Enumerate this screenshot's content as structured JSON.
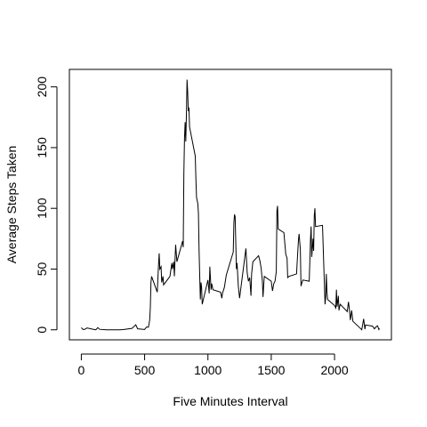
{
  "chart_data": {
    "type": "line",
    "xlabel": "Five Minutes Interval",
    "ylabel": "Average Steps Taken",
    "x": [
      0,
      15,
      30,
      45,
      100,
      115,
      130,
      145,
      200,
      230,
      300,
      330,
      400,
      415,
      430,
      445,
      500,
      515,
      530,
      540,
      545,
      550,
      555,
      600,
      610,
      615,
      620,
      630,
      635,
      645,
      650,
      700,
      715,
      720,
      730,
      735,
      745,
      755,
      800,
      805,
      810,
      815,
      820,
      825,
      830,
      835,
      840,
      845,
      850,
      855,
      900,
      905,
      910,
      920,
      925,
      930,
      935,
      940,
      945,
      950,
      955,
      1000,
      1010,
      1015,
      1025,
      1030,
      1040,
      1100,
      1110,
      1115,
      1130,
      1145,
      1200,
      1205,
      1210,
      1215,
      1225,
      1230,
      1240,
      1250,
      1300,
      1310,
      1320,
      1330,
      1340,
      1345,
      1355,
      1400,
      1410,
      1420,
      1430,
      1435,
      1445,
      1500,
      1510,
      1520,
      1530,
      1540,
      1545,
      1550,
      1555,
      1600,
      1615,
      1625,
      1630,
      1640,
      1700,
      1705,
      1715,
      1720,
      1730,
      1735,
      1740,
      1750,
      1800,
      1810,
      1815,
      1820,
      1830,
      1835,
      1840,
      1845,
      1850,
      1905,
      1915,
      1925,
      1930,
      1935,
      1940,
      1945,
      2000,
      2010,
      2015,
      2020,
      2030,
      2035,
      2040,
      2045,
      2100,
      2110,
      2115,
      2125,
      2135,
      2145,
      2200,
      2215,
      2230,
      2240,
      2245,
      2300,
      2315,
      2330,
      2340,
      2350,
      2355
    ],
    "series": [
      {
        "color": "#000000",
        "values": [
          1.7,
          0.2,
          0.5,
          1.5,
          0.3,
          0,
          1.8,
          0.4,
          0,
          0,
          0,
          0.2,
          1.2,
          2.6,
          4.1,
          0.8,
          0.3,
          2.3,
          2.1,
          8,
          18,
          39,
          44,
          31,
          54,
          63,
          50,
          52,
          39,
          44,
          37,
          44,
          55,
          50,
          56,
          44,
          70,
          56,
          73,
          68,
          129,
          158,
          171,
          155,
          177,
          206,
          196,
          180,
          183,
          167,
          143,
          124,
          109,
          104,
          96,
          66,
          45,
          25,
          39,
          35,
          21,
          41,
          30,
          52,
          33,
          38,
          33,
          31,
          26,
          30,
          35,
          45,
          64,
          88,
          95,
          93,
          50,
          55,
          36,
          26,
          67,
          47,
          40,
          43,
          28,
          46,
          56,
          61,
          57,
          51,
          40,
          27,
          44,
          40,
          32,
          38,
          40,
          48,
          98,
          102,
          83,
          80,
          62,
          59,
          43,
          44,
          46,
          56,
          74,
          79,
          66,
          36,
          38,
          41,
          40,
          74,
          85,
          60,
          75,
          65,
          94,
          100,
          85,
          86,
          53,
          21,
          27,
          46,
          31,
          25,
          20,
          18,
          33,
          19,
          28,
          16,
          19,
          21,
          15,
          23,
          19,
          8,
          16,
          7,
          1.6,
          0,
          9,
          0.5,
          4,
          3,
          0.8,
          2.6,
          3.3,
          0.2,
          1.1
        ]
      }
    ],
    "xlim": [
      -94.2,
      2449.2
    ],
    "xticks": [
      0,
      500,
      1000,
      1500,
      2000
    ],
    "ylim": [
      -8.25,
      214.4
    ],
    "yticks": [
      0,
      50,
      100,
      150,
      200
    ]
  }
}
